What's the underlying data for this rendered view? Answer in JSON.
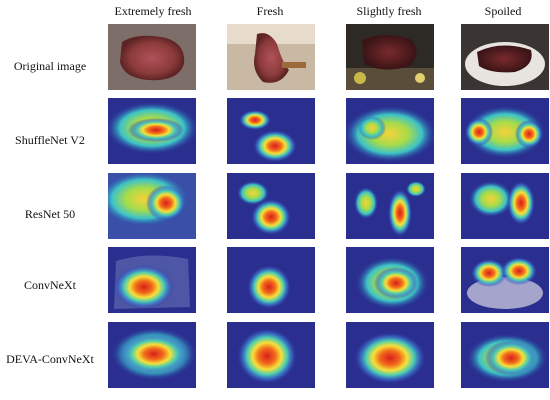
{
  "columns": [
    "Extremely fresh",
    "Fresh",
    "Slightly fresh",
    "Spoiled"
  ],
  "rows": [
    "Original image",
    "ShuffleNet V2",
    "ResNet 50",
    "ConvNeXt",
    "DEVA-ConvNeXt"
  ],
  "colors": {
    "heat_low": "#2a2f8f",
    "heat_mid": "#34c8c0",
    "heat_yellow": "#f6e83a",
    "heat_high": "#e3231b",
    "meat": "#8b3a3a"
  }
}
